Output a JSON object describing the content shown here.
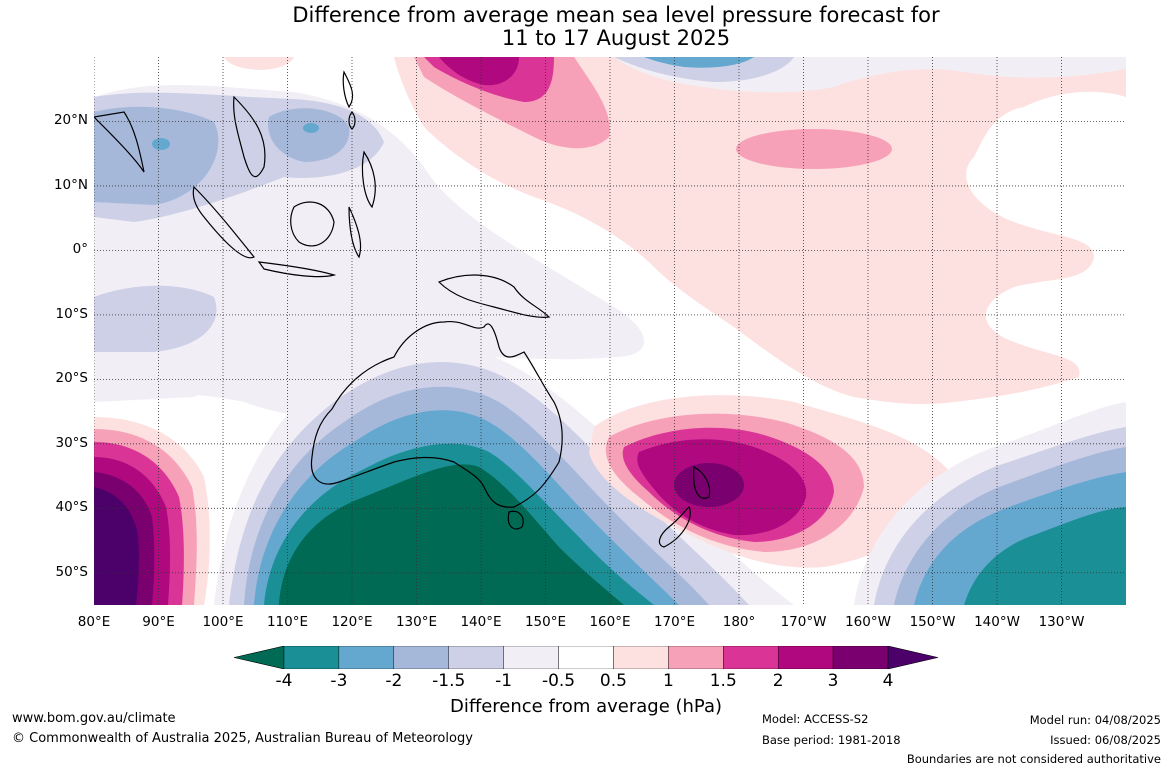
{
  "title": {
    "line1": "Difference from average mean sea level pressure forecast for",
    "line2": "11 to 17 August 2025"
  },
  "map": {
    "lat_labels": [
      "20°N",
      "10°N",
      "0°",
      "10°S",
      "20°S",
      "30°S",
      "40°S",
      "50°S"
    ],
    "lat_values": [
      20,
      10,
      0,
      -10,
      -20,
      -30,
      -40,
      -50
    ],
    "lon_labels": [
      "80°E",
      "90°E",
      "100°E",
      "110°E",
      "120°E",
      "130°E",
      "140°E",
      "150°E",
      "160°E",
      "170°E",
      "180°",
      "170°W",
      "160°W",
      "150°W",
      "140°W",
      "130°W"
    ],
    "lon_values": [
      80,
      90,
      100,
      110,
      120,
      130,
      140,
      150,
      160,
      170,
      180,
      190,
      200,
      210,
      220,
      230
    ],
    "lon_range": [
      80,
      240
    ],
    "lat_range": [
      -55,
      30
    ],
    "gridlines": true
  },
  "colorbar": {
    "ticks": [
      "-4",
      "-3",
      "-2",
      "-1.5",
      "-1",
      "-0.5",
      "0.5",
      "1",
      "1.5",
      "2",
      "3",
      "4"
    ],
    "colors": [
      "#006a55",
      "#1a9096",
      "#64a8d0",
      "#a6b8da",
      "#cdd0e6",
      "#f2eef5",
      "#ffffff",
      "#fde0e0",
      "#f7a1b8",
      "#da3596",
      "#b0087e",
      "#7a0070",
      "#4c006a"
    ],
    "title": "Difference from average (hPa)"
  },
  "footer": {
    "website": "www.bom.gov.au/climate",
    "copyright": "© Commonwealth of Australia 2025, Australian Bureau of Meteorology",
    "model": "Model: ACCESS-S2",
    "base_period": "Base period: 1981-2018",
    "model_run": "Model run: 04/08/2025",
    "issued": "Issued: 06/08/2025",
    "disclaimer": "Boundaries are not considered authoritative"
  }
}
